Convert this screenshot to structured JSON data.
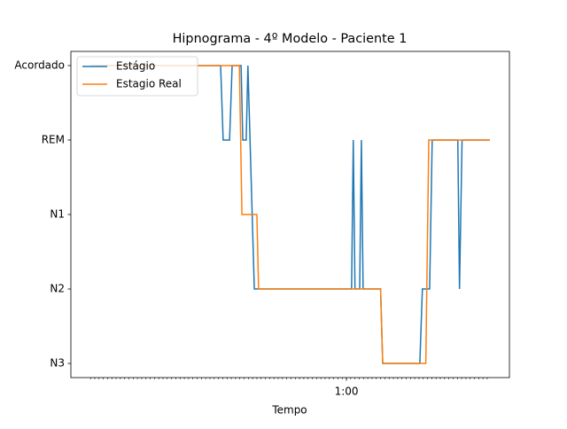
{
  "chart_data": {
    "type": "line",
    "title": "Hipnograma - 4º Modelo - Paciente 1",
    "xlabel": "Tempo",
    "xlim": [
      -4.6,
      98.2
    ],
    "xticks": [
      {
        "value": 60,
        "label": "1:00"
      }
    ],
    "xticks_minor": [
      0,
      1,
      2,
      3,
      4,
      5,
      6,
      7,
      8,
      9,
      10,
      11,
      12,
      13,
      14,
      15,
      16,
      17,
      18,
      19,
      20,
      21,
      22,
      23,
      24,
      25,
      26,
      27,
      28,
      29,
      30,
      31,
      32,
      33,
      34,
      35,
      36,
      37,
      38,
      39,
      40,
      41,
      42,
      43,
      44,
      45,
      46,
      47,
      48,
      49,
      50,
      51,
      52,
      53,
      54,
      55,
      56,
      57,
      58,
      59,
      60,
      61,
      62,
      63,
      64,
      65,
      66,
      67,
      68,
      69,
      70,
      71,
      72,
      73,
      74,
      75,
      76,
      77,
      78,
      79,
      80,
      81,
      82,
      83,
      84,
      85,
      86,
      87,
      88,
      89,
      90,
      91,
      92,
      93
    ],
    "ylim": [
      -0.19,
      4.19
    ],
    "yticks": [
      {
        "value": 4,
        "label": "Acordado"
      },
      {
        "value": 3,
        "label": "REM"
      },
      {
        "value": 2,
        "label": "N1"
      },
      {
        "value": 1,
        "label": "N2"
      },
      {
        "value": 0,
        "label": "N3"
      }
    ],
    "legend": "upper left",
    "series": [
      {
        "name": "Estágio",
        "color": "#1f77b4",
        "x": [
          0,
          30.5,
          31.1,
          32.6,
          33.2,
          35.3,
          35.7,
          36.5,
          36.9,
          38.4,
          61.2,
          61.6,
          62.0,
          63.1,
          63.5,
          63.9,
          68.0,
          68.5,
          77.2,
          77.8,
          79.5,
          80.1,
          86.1,
          86.5,
          87.1,
          93.6
        ],
        "values": [
          4,
          4,
          3,
          3,
          4,
          4,
          3,
          3,
          4,
          1,
          1,
          3,
          1,
          1,
          3,
          1,
          1,
          0,
          0,
          1,
          1,
          3,
          3,
          1,
          3,
          3
        ]
      },
      {
        "name": "Estagio Real",
        "color": "#ff7f0e",
        "x": [
          0,
          34.9,
          35.5,
          39.0,
          39.4,
          68.0,
          68.5,
          78.6,
          79.3,
          93.6
        ],
        "values": [
          4,
          4,
          2,
          2,
          1,
          1,
          0,
          0,
          3,
          3
        ]
      }
    ]
  }
}
